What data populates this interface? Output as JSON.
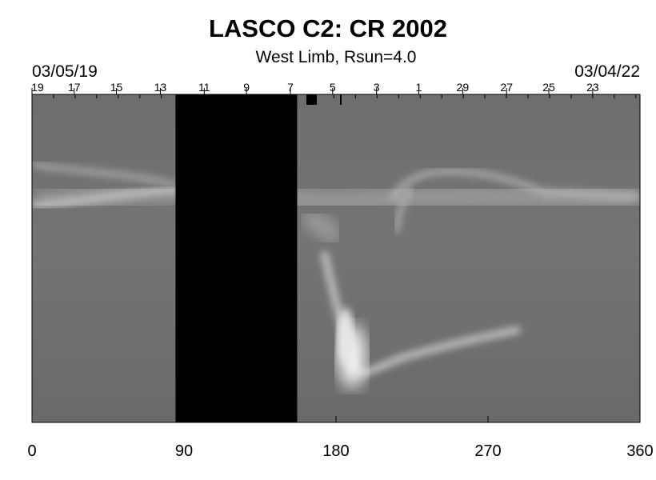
{
  "title": "LASCO C2: CR 2002",
  "subtitle": "West Limb, Rsun=4.0",
  "date_start": "03/05/19",
  "date_end": "03/04/22",
  "colors": {
    "background": "#ffffff",
    "image_mid_gray": "#7a7a7a",
    "data_gap": "#000000"
  },
  "chart_data": {
    "type": "heatmap",
    "title": "LASCO C2: CR 2002",
    "subtitle": "West Limb, Rsun=4.0",
    "xlabel": "",
    "ylabel": "",
    "xlim": [
      0,
      360
    ],
    "x_ticks": [
      0,
      90,
      180,
      270,
      360
    ],
    "x_tick_labels": [
      "0",
      "90",
      "180",
      "270",
      "360"
    ],
    "top_axis_day_labels": [
      "19",
      "17",
      "15",
      "13",
      "11",
      "9",
      "7",
      "5",
      "3",
      "1",
      "29",
      "27",
      "25",
      "23"
    ],
    "top_axis_day_positions_deg": [
      0,
      25,
      50,
      76,
      102,
      127,
      153,
      178,
      204,
      229,
      255,
      281,
      306,
      332
    ],
    "data_gaps": [
      [
        85,
        157
      ]
    ],
    "grayscale": true
  }
}
